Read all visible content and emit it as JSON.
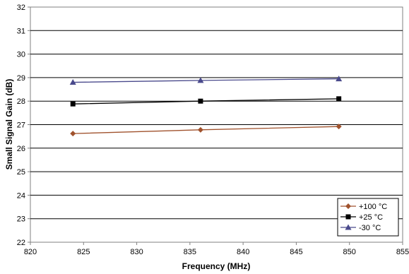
{
  "chart_data": {
    "type": "line",
    "title": "",
    "xlabel": "Frequency (MHz)",
    "ylabel": "Small Signal Gain (dB)",
    "xlim": [
      820,
      855
    ],
    "ylim": [
      22,
      32
    ],
    "x_ticks": [
      820,
      825,
      830,
      835,
      840,
      845,
      850,
      855
    ],
    "y_ticks": [
      22,
      23,
      24,
      25,
      26,
      27,
      28,
      29,
      30,
      31,
      32
    ],
    "grid": "horizontal",
    "legend_position": "bottom-right",
    "series": [
      {
        "name": "+100 °C",
        "color": "#a0522d",
        "marker": "diamond",
        "x": [
          824,
          836,
          849
        ],
        "y": [
          26.62,
          26.78,
          26.92
        ]
      },
      {
        "name": "+25 °C",
        "color": "#000000",
        "marker": "square",
        "x": [
          824,
          836,
          849
        ],
        "y": [
          27.88,
          28.0,
          28.1
        ]
      },
      {
        "name": "-30 °C",
        "color": "#4a4a8c",
        "marker": "triangle",
        "x": [
          824,
          836,
          849
        ],
        "y": [
          28.8,
          28.88,
          28.95
        ]
      }
    ]
  }
}
